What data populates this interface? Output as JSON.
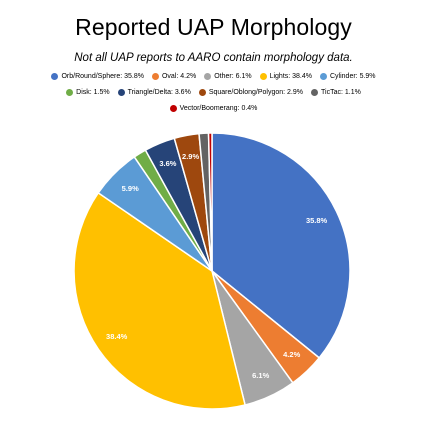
{
  "chart_data": {
    "type": "pie",
    "title": "Reported UAP Morphology",
    "subtitle": "Not all UAP reports to AARO contain morphology data.",
    "legend_position": "top",
    "slices": [
      {
        "name": "Orb/Round/Sphere",
        "value": 35.8,
        "label": "35.8%",
        "legend": "Orb/Round/Sphere: 35.8%",
        "color": "#4472C4"
      },
      {
        "name": "Oval",
        "value": 4.2,
        "label": "4.2%",
        "legend": "Oval: 4.2%",
        "color": "#ED7D31"
      },
      {
        "name": "Other",
        "value": 6.1,
        "label": "6.1%",
        "legend": "Other: 6.1%",
        "color": "#A5A5A5"
      },
      {
        "name": "Lights",
        "value": 38.4,
        "label": "38.4%",
        "legend": "Lights: 38.4%",
        "color": "#FFC000"
      },
      {
        "name": "Cylinder",
        "value": 5.9,
        "label": "5.9%",
        "legend": "Cylinder: 5.9%",
        "color": "#5B9BD5"
      },
      {
        "name": "Disk",
        "value": 1.5,
        "label": "",
        "legend": "Disk: 1.5%",
        "color": "#70AD47"
      },
      {
        "name": "Triangle/Delta",
        "value": 3.6,
        "label": "3.6%",
        "legend": "Triangle/Delta: 3.6%",
        "color": "#264478"
      },
      {
        "name": "Square/Oblong/Polygon",
        "value": 2.9,
        "label": "2.9%",
        "legend": "Square/Oblong/Polygon: 2.9%",
        "color": "#9E480E"
      },
      {
        "name": "TicTac",
        "value": 1.1,
        "label": "",
        "legend": "TicTac: 1.1%",
        "color": "#636363"
      },
      {
        "name": "Vector/Boomerang",
        "value": 0.4,
        "label": "",
        "legend": "Vector/Boomerang: 0.4%",
        "color": "#C00000"
      }
    ]
  }
}
